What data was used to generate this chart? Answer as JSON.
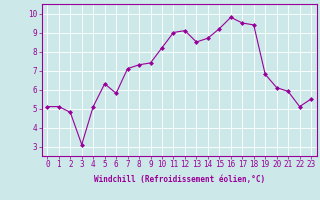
{
  "x": [
    0,
    1,
    2,
    3,
    4,
    5,
    6,
    7,
    8,
    9,
    10,
    11,
    12,
    13,
    14,
    15,
    16,
    17,
    18,
    19,
    20,
    21,
    22,
    23
  ],
  "y": [
    5.1,
    5.1,
    4.8,
    3.1,
    5.1,
    6.3,
    5.8,
    7.1,
    7.3,
    7.4,
    8.2,
    9.0,
    9.1,
    8.5,
    8.7,
    9.2,
    9.8,
    9.5,
    9.4,
    6.8,
    6.1,
    5.9,
    5.1,
    5.5
  ],
  "line_color": "#990099",
  "marker": "D",
  "markersize": 2.0,
  "linewidth": 0.8,
  "bg_color": "#cce8e8",
  "grid_color": "#ffffff",
  "xlabel": "Windchill (Refroidissement éolien,°C)",
  "xlabel_color": "#990099",
  "tick_color": "#990099",
  "xlim": [
    -0.5,
    23.5
  ],
  "ylim": [
    2.5,
    10.5
  ],
  "yticks": [
    3,
    4,
    5,
    6,
    7,
    8,
    9,
    10
  ],
  "xticks": [
    0,
    1,
    2,
    3,
    4,
    5,
    6,
    7,
    8,
    9,
    10,
    11,
    12,
    13,
    14,
    15,
    16,
    17,
    18,
    19,
    20,
    21,
    22,
    23
  ],
  "tick_fontsize": 5.5,
  "xlabel_fontsize": 5.5
}
